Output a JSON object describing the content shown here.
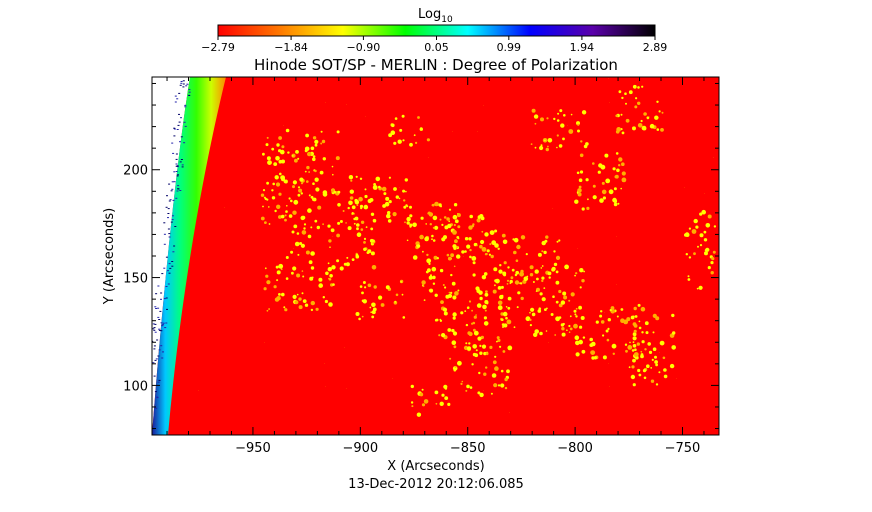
{
  "colorbar": {
    "label_main": "Log",
    "label_sub": "10",
    "ticks": [
      "-2.79",
      "-1.84",
      "-0.90",
      "0.05",
      "0.99",
      "1.94",
      "2.89"
    ],
    "range": [
      -2.79,
      2.89
    ],
    "colormap": [
      "#ff0000",
      "#ff7a00",
      "#ffff00",
      "#00ff00",
      "#00ffff",
      "#0000ff",
      "#5a00aa",
      "#000000"
    ]
  },
  "chart_data": {
    "type": "heatmap",
    "title": "Hinode SOT/SP - MERLIN : Degree of Polarization",
    "xlabel": "X (Arcseconds)",
    "ylabel": "Y (Arcseconds)",
    "xlim": [
      -997,
      -733
    ],
    "ylim": [
      77,
      243
    ],
    "x_ticks": [
      -950,
      -900,
      -850,
      -800,
      -750
    ],
    "y_ticks": [
      100,
      150,
      200
    ],
    "x_tick_labels": [
      "−950",
      "−900",
      "−850",
      "−800",
      "−750"
    ],
    "y_tick_labels": [
      "100",
      "150",
      "200"
    ],
    "background_color": "#ff0000",
    "feature_color": "#ffff00",
    "limb_colors": [
      "#ffffff",
      "#0000aa",
      "#00ffff",
      "#00ff00",
      "#ffff00",
      "#ff8800"
    ],
    "timestamp": "13-Dec-2012 20:12:06.085"
  }
}
